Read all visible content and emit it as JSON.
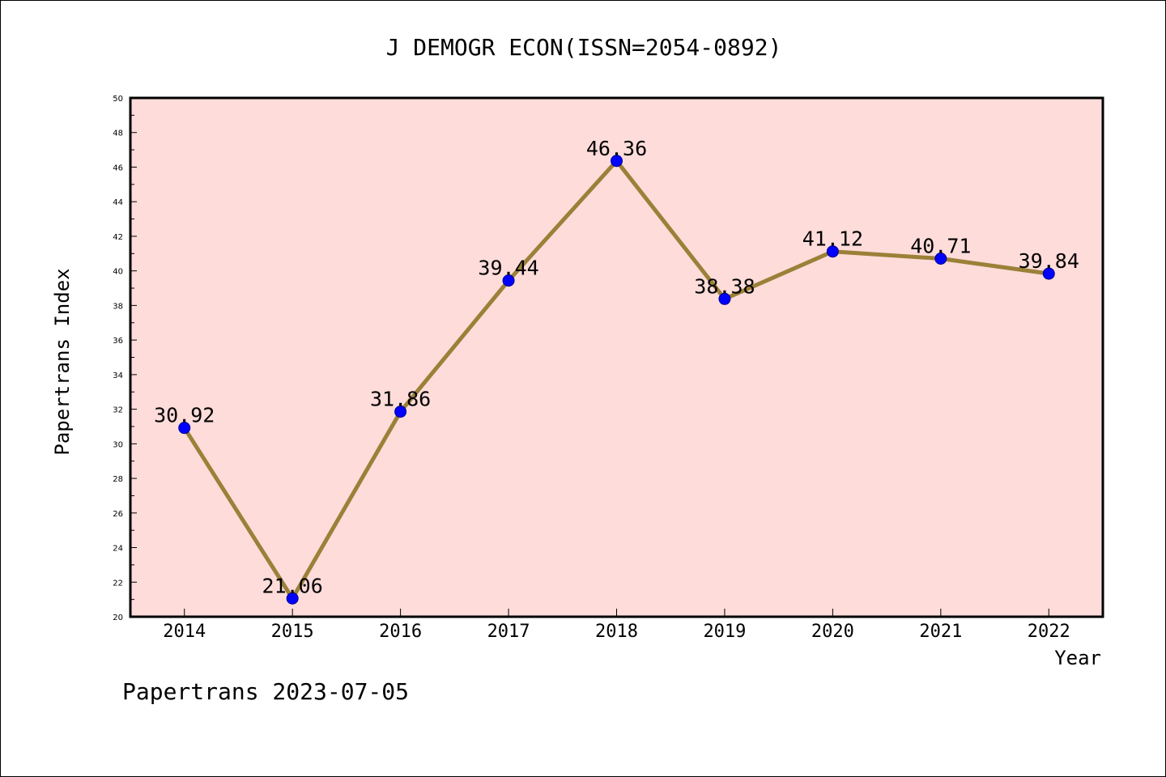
{
  "footer_text": "Papertrans 2023-07-05",
  "chart_data": {
    "type": "line",
    "title": "J DEMOGR ECON(ISSN=2054-0892)",
    "xlabel": "Year",
    "ylabel": "Papertrans Index",
    "categories": [
      "2014",
      "2015",
      "2016",
      "2017",
      "2018",
      "2019",
      "2020",
      "2021",
      "2022"
    ],
    "values": [
      30.92,
      21.06,
      31.86,
      39.44,
      46.36,
      38.38,
      41.12,
      40.71,
      39.84
    ],
    "value_labels": [
      "30.92",
      "21.06",
      "31.86",
      "39.44",
      "46.36",
      "38.38",
      "41.12",
      "40.71",
      "39.84"
    ],
    "ylim": [
      20,
      50
    ],
    "yticks": [
      "20",
      "22",
      "24",
      "26",
      "28",
      "30",
      "32",
      "34",
      "36",
      "38",
      "40",
      "42",
      "44",
      "46",
      "48",
      "50"
    ],
    "grid": false,
    "plot_background": "#fddcda",
    "line_color": "#9b8038",
    "marker_color": "#0000ff"
  }
}
